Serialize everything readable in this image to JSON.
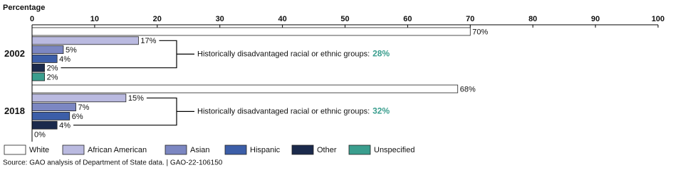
{
  "chart_data": {
    "type": "bar",
    "orientation": "horizontal",
    "x_label": "Percentage",
    "categories": [
      "2002",
      "2018"
    ],
    "series": [
      {
        "name": "White",
        "color": "#ffffff",
        "values": [
          70,
          68
        ],
        "value_labels": [
          "70%",
          "68%"
        ]
      },
      {
        "name": "African American",
        "color": "#babae0",
        "values": [
          17,
          15
        ],
        "value_labels": [
          "17%",
          "15%"
        ]
      },
      {
        "name": "Asian",
        "color": "#7c87c2",
        "values": [
          5,
          7
        ],
        "value_labels": [
          "5%",
          "7%"
        ]
      },
      {
        "name": "Hispanic",
        "color": "#3c5ea8",
        "values": [
          4,
          6
        ],
        "value_labels": [
          "4%",
          "6%"
        ]
      },
      {
        "name": "Other",
        "color": "#1b2a4c",
        "values": [
          2,
          4
        ],
        "value_labels": [
          "2%",
          "4%"
        ]
      },
      {
        "name": "Unspecified",
        "color": "#3a9e8e",
        "values": [
          2,
          0
        ],
        "value_labels": [
          "2%",
          "0%"
        ]
      }
    ],
    "xlim": [
      0,
      100
    ],
    "xticks": [
      0,
      10,
      20,
      30,
      40,
      50,
      60,
      70,
      80,
      90,
      100
    ],
    "annotations": [
      {
        "text": "Historically disadvantaged racial or ethnic groups:",
        "highlight": "28%"
      },
      {
        "text": "Historically disadvantaged racial or ethnic groups:",
        "highlight": "32%"
      }
    ],
    "source": "Source: GAO analysis of Department of State data.  |  GAO-22-106150"
  }
}
